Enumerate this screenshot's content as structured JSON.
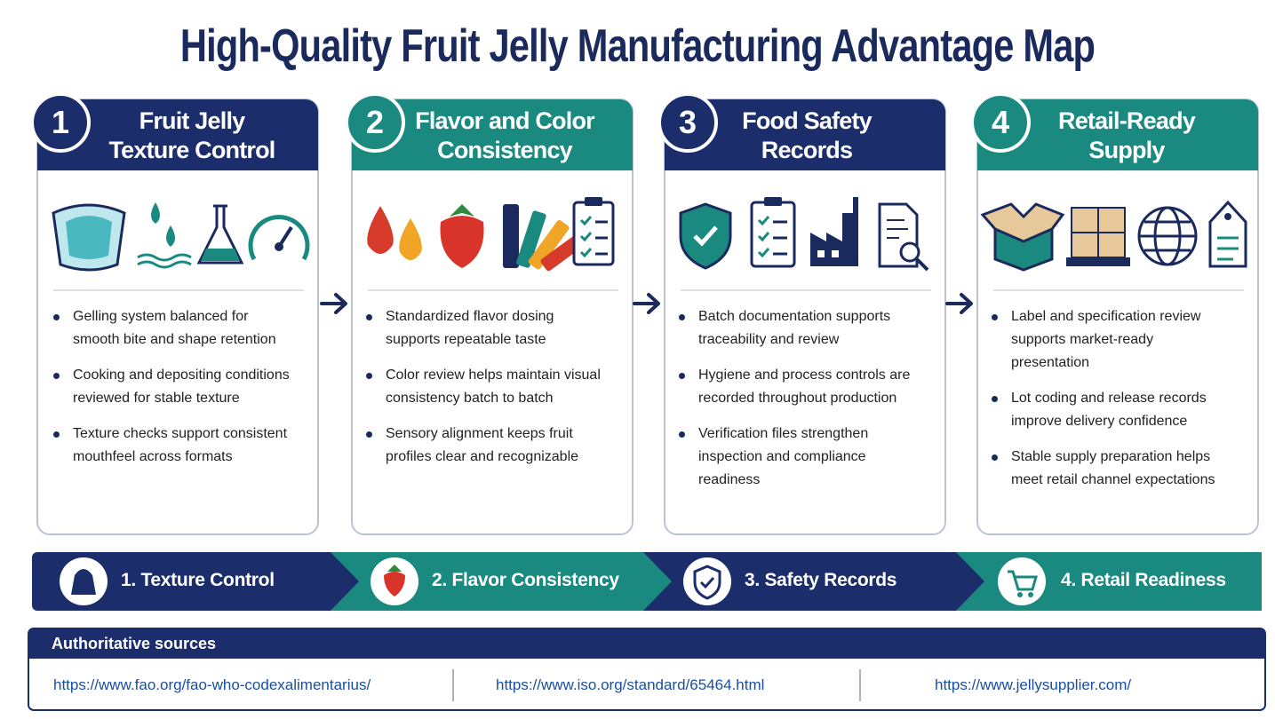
{
  "title": "High-Quality Fruit Jelly Manufacturing Advantage Map",
  "steps": [
    {
      "number": "1",
      "title": [
        "Fruit Jelly",
        "Texture Control"
      ],
      "bullets": [
        "Gelling system balanced for smooth bite and shape retention",
        "Cooking and depositing conditions reviewed for stable texture",
        "Texture checks support consistent mouthfeel across formats"
      ]
    },
    {
      "number": "2",
      "title": [
        "Flavor and Color",
        "Consistency"
      ],
      "bullets": [
        "Standardized flavor dosing supports repeatable taste",
        "Color review helps maintain visual consistency batch to batch",
        "Sensory alignment keeps fruit profiles clear and recognizable"
      ]
    },
    {
      "number": "3",
      "title": [
        "Food Safety",
        "Records"
      ],
      "bullets": [
        "Batch documentation supports traceability and review",
        "Hygiene and process controls are recorded throughout production",
        "Verification files strengthen inspection and compliance readiness"
      ]
    },
    {
      "number": "4",
      "title": [
        "Retail-Ready",
        "Supply"
      ],
      "bullets": [
        "Label and specification review supports market-ready presentation",
        "Lot coding and release records improve delivery confidence",
        "Stable supply preparation helps meet retail channel expectations"
      ]
    }
  ],
  "flow": [
    "1. Texture Control",
    "2. Flavor Consistency",
    "3. Safety Records",
    "4. Retail Readiness"
  ],
  "sources": {
    "title": "Authoritative sources",
    "links": [
      "https://www.fao.org/fao-who-codexalimentarius/",
      "https://www.iso.org/standard/65464.html",
      "https://www.jellysupplier.com/"
    ]
  }
}
